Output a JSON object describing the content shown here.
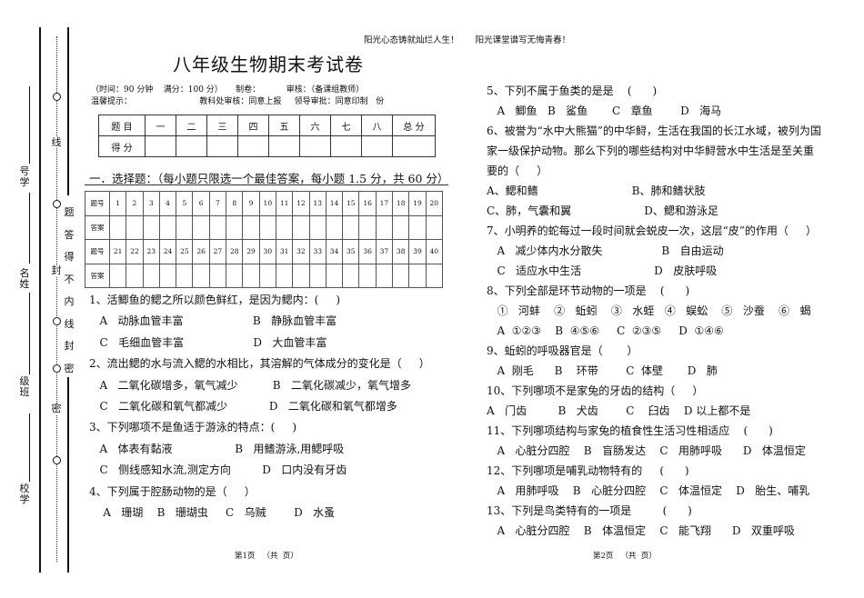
{
  "slogan": "阳光心态铸就灿烂人生！      阳光课堂谱写无悔青春！",
  "binding": {
    "fields": [
      "号学",
      "名姓",
      "级班",
      "校学"
    ],
    "seal_marks": [
      "线",
      "封",
      "密"
    ],
    "warning": [
      "题",
      "答",
      "得",
      "不",
      "内",
      "线",
      "封",
      "密"
    ]
  },
  "title": "八年级生物期末考试卷",
  "info_line1": "（时间：90 分钟    满分：100 分）     制卷：          审核：（备课组教师）",
  "info_line2": "温馨提示：                          教科处审核：同意上报     领导审批：同意印制   份",
  "score_table": {
    "headers": [
      "题 目",
      "一",
      "二",
      "三",
      "四",
      "五",
      "六",
      "七",
      "八",
      "总  分"
    ],
    "row_label": "得 分"
  },
  "section_title": "一．选择题：（每小题只限选一个最佳答案，每小题 1.5 分，共 60 分）",
  "answer_grid": {
    "num_label": "题号",
    "ans_label": "答案",
    "row1": [
      "1",
      "2",
      "3",
      "4",
      "5",
      "6",
      "7",
      "8",
      "9",
      "10",
      "11",
      "12",
      "13",
      "14",
      "15",
      "16",
      "17",
      "18",
      "19",
      "20"
    ],
    "row2": [
      "21",
      "22",
      "23",
      "24",
      "25",
      "26",
      "27",
      "28",
      "29",
      "30",
      "31",
      "32",
      "33",
      "34",
      "35",
      "36",
      "37",
      "38",
      "39",
      "40"
    ]
  },
  "left_lines": [
    "1、活鲫鱼的鳃之所以颜色鲜红，是因为鳃内：(     )",
    "   A   动脉血管丰富                    B   静脉血管丰富",
    "   C   毛细血管丰富                    D   大血管丰富",
    "2、流出鳃的水与流入鳃的水相比，其溶解的气体成分的变化是（     ）",
    "   A   二氧化碳增多，氧气减少          B   二氧化碳减少，氧气增多",
    "   C   二氧化碳和氧气都减少            D   二氧化碳和氧气都增多",
    "3、下列哪项不是鱼适于游泳的特点：(     )",
    "   A   体表有黏液                  B   用鳍游泳,用鳃呼吸",
    "   C   侧线感知水流,测定方向         D   口内没有牙齿",
    "4、下列属于腔肠动物的是（     ）",
    "    A   珊瑚    B   珊瑚虫     C   乌贼        D   水蚤"
  ],
  "right_lines": [
    "5、下列不属于鱼类的是是    (      )",
    "   A   鲫鱼   B   鲨鱼       C   章鱼        D   海马",
    "6、被誉为“水中大熊猫”的中华鲟，生活在我国的长江水域，被列为国",
    "家一级保护动物。那么下列的哪些结构对中华鲟营水中生活是至关重",
    "要的（     ）",
    "A、鳃和鳍                           B、肺和鳍状肢",
    "C、肺，气囊和翼                     D、鳃和游泳足",
    "7、小明养的蛇每过一段时间就会蜕皮一次，这层“皮”的作用（     ）",
    "   A   减少体内水分散失                 B   自由运动",
    "   C   适应水中生活                     D   皮肤呼吸",
    "8、下列全部是环节动物的一项是    (      )",
    "   ①   河蚌    ②   蚯蚓    ③   水蛭   ④   蜈蚣    ⑤   沙蚕    ⑥   蝎",
    "   A  ①②③    B  ④⑤⑥     C  ②③⑤     D  ①④⑥",
    "9、蚯蚓的呼吸器官是（       ）",
    "   A  刚毛      B    环带        C  体壁       D   肺",
    "10、下列哪项不是家兔的牙齿的结构（     ）",
    "A   门齿         B   犬齿        C    臼齿    D 以上都不是",
    "11、下列哪项结构与家兔的植食性生活习性相适应    (      )",
    "   A   心脏分四腔    B   盲肠发达    C   用肺呼吸      D   体温恒定",
    "12、下列哪项是哺乳动物特有的     (      )",
    "   A   用肺呼吸    B   心脏分四腔    C   体温恒定    D   胎生、哺乳",
    "13、下列是鸟类特有的一项是         (      )",
    "   A   心脏分四腔    B   体温恒定    C   能飞翔      D   双重呼吸"
  ],
  "footer_left": "第1页   （共  页）",
  "footer_right": "第2页   （共  页）"
}
